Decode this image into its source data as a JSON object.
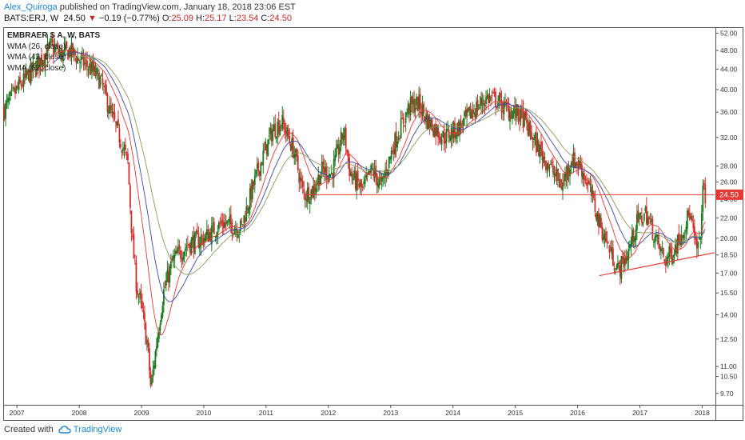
{
  "header": {
    "author": "Alex_Quiroga",
    "published_text": " published on TradingView.com, January 18, 2018 23:06 EST"
  },
  "quote": {
    "symbol": "BATS:ERJ, W",
    "price": "24.50",
    "change": "−0.19 (−0.77%)",
    "open_label": "O:",
    "open": "25.09",
    "high_label": "H:",
    "high": "25.17",
    "low_label": "L:",
    "low": "23.54",
    "close_label": "C:",
    "close": "24.50"
  },
  "legend": {
    "title": "EMBRAER S A, W, BATS",
    "items": [
      "WMA (26, close)",
      "WMA (42, close)",
      "WMA (62, close)"
    ]
  },
  "price_badge": "24.50",
  "footer": {
    "created_with": "Created with",
    "brand": "TradingView"
  },
  "colors": {
    "up": "#1b7a1f",
    "down": "#d32f2f",
    "wma26": "#e53935",
    "wma42": "#3949ab",
    "wma62": "#8a9a5b",
    "level": "#e53935",
    "trend": "#e53935",
    "badge": "#e53935"
  },
  "chart_data": {
    "type": "candlestick",
    "y_scale": "log",
    "y_ticks": [
      52.0,
      48.0,
      44.0,
      40.0,
      36.0,
      32.0,
      28.0,
      26.0,
      24.0,
      22.0,
      20.0,
      18.5,
      17.0,
      15.5,
      14.0,
      12.5,
      11.0,
      10.5,
      9.7
    ],
    "x_ticks": [
      "2007",
      "2008",
      "2009",
      "2010",
      "2011",
      "2012",
      "2013",
      "2014",
      "2015",
      "2016",
      "2017",
      "2018"
    ],
    "ylim": [
      9.2,
      53.5
    ],
    "xlim": [
      2006.78,
      2018.2
    ],
    "price_path": [
      [
        2006.8,
        36.5
      ],
      [
        2007.0,
        40.0
      ],
      [
        2007.3,
        44.5
      ],
      [
        2007.55,
        49.0
      ],
      [
        2007.7,
        47.0
      ],
      [
        2007.85,
        48.0
      ],
      [
        2008.0,
        46.0
      ],
      [
        2008.2,
        44.0
      ],
      [
        2008.35,
        41.5
      ],
      [
        2008.5,
        36.0
      ],
      [
        2008.65,
        32.0
      ],
      [
        2008.78,
        28.5
      ],
      [
        2008.85,
        20.0
      ],
      [
        2008.92,
        16.0
      ],
      [
        2009.0,
        14.5
      ],
      [
        2009.1,
        12.0
      ],
      [
        2009.15,
        9.9
      ],
      [
        2009.25,
        12.5
      ],
      [
        2009.35,
        15.5
      ],
      [
        2009.5,
        18.0
      ],
      [
        2009.75,
        19.5
      ],
      [
        2010.0,
        20.0
      ],
      [
        2010.3,
        21.5
      ],
      [
        2010.6,
        21.0
      ],
      [
        2010.85,
        27.0
      ],
      [
        2011.1,
        33.0
      ],
      [
        2011.25,
        34.5
      ],
      [
        2011.45,
        30.0
      ],
      [
        2011.6,
        24.5
      ],
      [
        2011.75,
        25.0
      ],
      [
        2011.9,
        27.5
      ],
      [
        2012.05,
        27.0
      ],
      [
        2012.25,
        33.0
      ],
      [
        2012.35,
        27.0
      ],
      [
        2012.55,
        25.0
      ],
      [
        2012.7,
        27.5
      ],
      [
        2012.85,
        25.5
      ],
      [
        2013.05,
        31.0
      ],
      [
        2013.3,
        37.0
      ],
      [
        2013.45,
        37.5
      ],
      [
        2013.6,
        34.5
      ],
      [
        2013.85,
        32.0
      ],
      [
        2014.1,
        33.5
      ],
      [
        2014.3,
        36.0
      ],
      [
        2014.55,
        38.5
      ],
      [
        2014.7,
        38.0
      ],
      [
        2014.85,
        36.5
      ],
      [
        2015.1,
        35.5
      ],
      [
        2015.3,
        31.5
      ],
      [
        2015.55,
        28.0
      ],
      [
        2015.75,
        25.5
      ],
      [
        2015.9,
        29.0
      ],
      [
        2016.05,
        28.0
      ],
      [
        2016.2,
        25.0
      ],
      [
        2016.35,
        21.5
      ],
      [
        2016.55,
        18.5
      ],
      [
        2016.65,
        17.2
      ],
      [
        2016.8,
        18.5
      ],
      [
        2016.95,
        21.5
      ],
      [
        2017.1,
        22.5
      ],
      [
        2017.25,
        20.0
      ],
      [
        2017.4,
        18.0
      ],
      [
        2017.55,
        19.0
      ],
      [
        2017.7,
        21.0
      ],
      [
        2017.8,
        22.5
      ],
      [
        2017.9,
        19.0
      ],
      [
        2017.97,
        19.5
      ],
      [
        2018.0,
        25.0
      ],
      [
        2018.05,
        24.5
      ]
    ],
    "annotations": [
      {
        "type": "horizontal_line",
        "y": 24.5,
        "from_x": 2011.6,
        "to_x": 2018.2
      },
      {
        "type": "trend_line",
        "points": [
          [
            2016.35,
            16.8
          ],
          [
            2018.2,
            18.7
          ]
        ]
      }
    ]
  }
}
